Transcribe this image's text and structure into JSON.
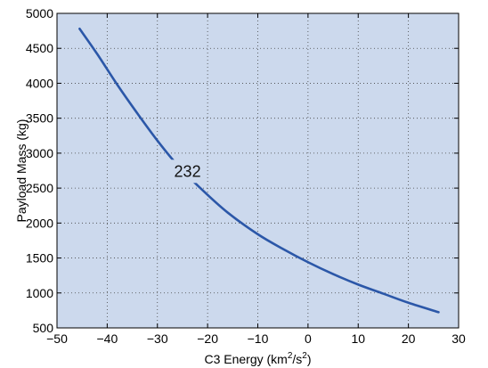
{
  "chart_data": {
    "type": "line",
    "title": "",
    "xlabel": "C3 Energy (km²/s²)",
    "ylabel": "Payload Mass (kg)",
    "xlim": [
      -50,
      30
    ],
    "ylim": [
      500,
      5000
    ],
    "xticks": [
      -50,
      -40,
      -30,
      -20,
      -10,
      0,
      10,
      20,
      30
    ],
    "yticks": [
      500,
      1000,
      1500,
      2000,
      2500,
      3000,
      3500,
      4000,
      4500,
      5000
    ],
    "grid": true,
    "background_color": "#ccd9ed",
    "series": [
      {
        "name": "232",
        "color": "#2b57a8",
        "x": [
          -45.5,
          -42,
          -38,
          -34,
          -30,
          -26,
          -21,
          -16,
          -10,
          -5,
          0,
          5,
          10,
          15,
          20,
          26
        ],
        "y": [
          4780,
          4420,
          3980,
          3570,
          3180,
          2830,
          2470,
          2150,
          1840,
          1630,
          1440,
          1270,
          1120,
          990,
          860,
          725
        ]
      }
    ],
    "annotations": [
      {
        "text": "232",
        "x": -24,
        "y": 2740
      }
    ]
  }
}
